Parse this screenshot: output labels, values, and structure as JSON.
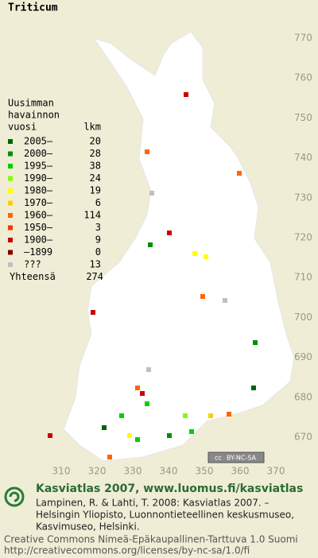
{
  "title": "Triticum",
  "legend": {
    "heading": [
      "Uusimman",
      "havainnon"
    ],
    "year_header": "vuosi",
    "count_header": "lkm",
    "rows": [
      {
        "label": "2005–",
        "count": 20,
        "color": "#006400"
      },
      {
        "label": "2000–",
        "count": 28,
        "color": "#009000"
      },
      {
        "label": "1995–",
        "count": 38,
        "color": "#00d000"
      },
      {
        "label": "1990–",
        "count": 24,
        "color": "#80ff00"
      },
      {
        "label": "1980–",
        "count": 19,
        "color": "#ffff00"
      },
      {
        "label": "1970–",
        "count": 6,
        "color": "#ffcc00"
      },
      {
        "label": "1960–",
        "count": 114,
        "color": "#ff6600"
      },
      {
        "label": "1950–",
        "count": 3,
        "color": "#ff3300"
      },
      {
        "label": "1900–",
        "count": 9,
        "color": "#cc0000"
      },
      {
        "label": "–1899",
        "count": 0,
        "color": "#800000"
      },
      {
        "label": "???",
        "count": 13,
        "color": "#c0c0c0"
      }
    ],
    "total_label": "Yhteensä",
    "total": 274
  },
  "map": {
    "northing_labels": [
      770,
      760,
      750,
      740,
      730,
      720,
      710,
      700,
      690,
      680,
      670
    ],
    "easting_labels": [
      310,
      320,
      330,
      340,
      350,
      360,
      370
    ]
  },
  "badge": {
    "cc": "cc",
    "license": "BY-NC-SA"
  },
  "footer": {
    "heading": "Kasviatlas 2007, www.luomus.fi/kasviatlas",
    "citation": [
      "Lampinen, R. & Lahti, T. 2008: Kasviatlas 2007. –",
      "Helsingin Yliopisto, Luonnontieteellinen keskusmuseo,",
      "Kasvimuseo, Helsinki."
    ],
    "license": [
      "Creative Commons Nimeä-Epäkaupallinen-Tarttuva 1.0 Suomi",
      "http://creativecommons.org/licenses/by-nc-sa/1.0/fi"
    ]
  }
}
